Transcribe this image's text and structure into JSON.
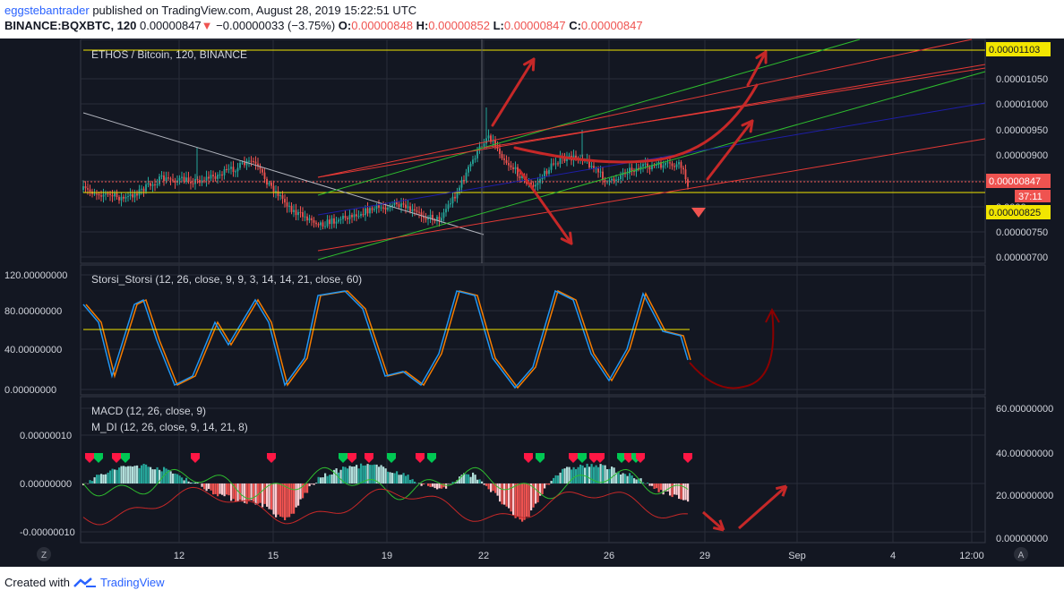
{
  "header": {
    "username": "eggstebantrader",
    "published_text": "published on TradingView.com, August 28, 2019 15:22:51 UTC",
    "symbol": "BINANCE:BQXBTC, 120",
    "last": "0.00000847",
    "change": "−0.00000033 (−3.75%)",
    "o_label": "O:",
    "o": "0.00000848",
    "h_label": "H:",
    "h": "0.00000852",
    "l_label": "L:",
    "l": "0.00000847",
    "c_label": "C:",
    "c": "0.00000847"
  },
  "price_pane": {
    "title": "ETHOS / Bitcoin, 120, BINANCE",
    "axis_labels": [
      "0.00001050",
      "0.00001000",
      "0.00000950",
      "0.00000900",
      "0.0000",
      "0.00000750",
      "0.00000700"
    ],
    "tag_top": "0.00001103",
    "tag_price": "0.00000847",
    "tag_timer": "37:11",
    "tag_support": "0.00000825"
  },
  "stoch_pane": {
    "title": "Storsi_Storsi (12, 26, close, 9, 9, 3, 14, 14, 21, close, 60)",
    "axis_labels": [
      "120.00000000",
      "80.00000000",
      "40.00000000",
      "0.00000000"
    ]
  },
  "macd_pane": {
    "title1": "MACD (12, 26, close, 9)",
    "title2": "M_DI (12, 26, close, 9, 14, 21, 8)",
    "left_axis": [
      "0.00000010",
      "0.00000000",
      "-0.00000010"
    ],
    "right_axis": [
      "60.00000000",
      "40.00000000",
      "20.00000000",
      "0.00000000"
    ]
  },
  "time_axis": {
    "labels": [
      "12",
      "15",
      "19",
      "22",
      "26",
      "29",
      "Sep",
      "4",
      "12:00"
    ],
    "left_button": "Z",
    "right_button": "A"
  },
  "colors": {
    "bull": "#26a69a",
    "bear": "#ef5350",
    "annotation": "#c62828",
    "green_line": "#2ebd2e",
    "blue_line": "#1e1ea8",
    "yellow_line": "#f2e600",
    "pane_bg": "#131722"
  },
  "footer": {
    "created_with": "Created with",
    "brand": "TradingView"
  }
}
